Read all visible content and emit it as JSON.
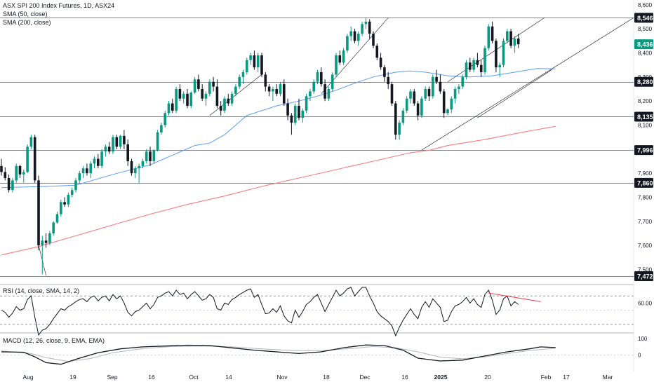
{
  "chart_data": {
    "type": "candlestick",
    "legend": {
      "title": "ASX SPI 200 Index Futures, 1D, ASX24",
      "sma50": "SMA (50, close)",
      "sma200": "SMA (200, close)"
    },
    "price_axis": {
      "ylim": [
        7440,
        8620
      ],
      "ticks": [
        7500,
        7600,
        7700,
        7800,
        7900,
        8000,
        8100,
        8200,
        8300,
        8400,
        8500,
        8600
      ],
      "tick_labels": [
        "7,500",
        "7,600",
        "7,700",
        "7,800",
        "7,900",
        "8,000",
        "8,100",
        "8,200",
        "8,300",
        "8,400",
        "8,500",
        "8,600"
      ]
    },
    "price_levels": [
      {
        "value": 8546,
        "label": "8,546",
        "style": "dark"
      },
      {
        "value": 8436,
        "label": "8,436",
        "style": "last"
      },
      {
        "value": 8280,
        "label": "8,280",
        "style": "dark"
      },
      {
        "value": 8135,
        "label": "8,135",
        "style": "dark"
      },
      {
        "value": 7996,
        "label": "7,996",
        "style": "dark"
      },
      {
        "value": 7860,
        "label": "7,860",
        "style": "dark"
      },
      {
        "value": 7472,
        "label": "7,472",
        "style": "dark"
      }
    ],
    "x_labels": [
      "Aug",
      "19",
      "Sep",
      "16",
      "Oct",
      "14",
      "Nov",
      "18",
      "Dec",
      "16",
      "2025",
      "20",
      "Feb",
      "17",
      "Mar"
    ],
    "candles": [
      [
        7930,
        7960,
        7890,
        7905
      ],
      [
        7905,
        7925,
        7870,
        7880
      ],
      [
        7880,
        7895,
        7820,
        7830
      ],
      [
        7830,
        7880,
        7820,
        7870
      ],
      [
        7870,
        7940,
        7860,
        7930
      ],
      [
        7930,
        7935,
        7880,
        7895
      ],
      [
        7895,
        7915,
        7860,
        7905
      ],
      [
        7905,
        8020,
        7900,
        8010
      ],
      [
        8010,
        8060,
        8000,
        8050
      ],
      [
        8050,
        8060,
        7860,
        7870
      ],
      [
        7870,
        7890,
        7580,
        7600
      ],
      [
        7600,
        7640,
        7480,
        7620
      ],
      [
        7620,
        7650,
        7590,
        7610
      ],
      [
        7610,
        7660,
        7600,
        7650
      ],
      [
        7650,
        7700,
        7640,
        7695
      ],
      [
        7695,
        7740,
        7690,
        7730
      ],
      [
        7730,
        7790,
        7720,
        7780
      ],
      [
        7780,
        7800,
        7760,
        7770
      ],
      [
        7770,
        7820,
        7760,
        7810
      ],
      [
        7810,
        7840,
        7800,
        7830
      ],
      [
        7830,
        7880,
        7820,
        7870
      ],
      [
        7870,
        7910,
        7860,
        7900
      ],
      [
        7900,
        7930,
        7880,
        7920
      ],
      [
        7920,
        7940,
        7890,
        7900
      ],
      [
        7900,
        7950,
        7880,
        7940
      ],
      [
        7940,
        7970,
        7920,
        7960
      ],
      [
        7960,
        7980,
        7920,
        7930
      ],
      [
        7930,
        8000,
        7920,
        7990
      ],
      [
        7990,
        8020,
        7970,
        8010
      ],
      [
        8010,
        8030,
        7980,
        7990
      ],
      [
        7990,
        8060,
        7980,
        8050
      ],
      [
        8050,
        8060,
        8000,
        8010
      ],
      [
        8010,
        8060,
        8000,
        8055
      ],
      [
        8055,
        8080,
        8000,
        8020
      ],
      [
        8020,
        8040,
        7930,
        7950
      ],
      [
        7950,
        7960,
        7890,
        7900
      ],
      [
        7900,
        7930,
        7880,
        7920
      ],
      [
        7920,
        7940,
        7860,
        7930
      ],
      [
        7930,
        7960,
        7920,
        7950
      ],
      [
        7950,
        8000,
        7940,
        7990
      ],
      [
        7990,
        8010,
        7930,
        7950
      ],
      [
        7950,
        8000,
        7940,
        7995
      ],
      [
        7995,
        8080,
        7990,
        8070
      ],
      [
        8070,
        8110,
        8060,
        8100
      ],
      [
        8100,
        8160,
        8090,
        8150
      ],
      [
        8150,
        8200,
        8140,
        8190
      ],
      [
        8190,
        8210,
        8150,
        8160
      ],
      [
        8160,
        8260,
        8150,
        8250
      ],
      [
        8250,
        8270,
        8200,
        8210
      ],
      [
        8210,
        8240,
        8190,
        8230
      ],
      [
        8230,
        8250,
        8170,
        8180
      ],
      [
        8180,
        8240,
        8170,
        8235
      ],
      [
        8235,
        8300,
        8230,
        8290
      ],
      [
        8290,
        8310,
        8240,
        8250
      ],
      [
        8250,
        8270,
        8200,
        8210
      ],
      [
        8210,
        8240,
        8180,
        8230
      ],
      [
        8230,
        8290,
        8220,
        8280
      ],
      [
        8280,
        8300,
        8240,
        8260
      ],
      [
        8260,
        8290,
        8170,
        8180
      ],
      [
        8180,
        8200,
        8140,
        8160
      ],
      [
        8160,
        8220,
        8150,
        8210
      ],
      [
        8210,
        8230,
        8180,
        8190
      ],
      [
        8190,
        8240,
        8180,
        8230
      ],
      [
        8230,
        8270,
        8220,
        8260
      ],
      [
        8260,
        8310,
        8250,
        8300
      ],
      [
        8300,
        8330,
        8270,
        8320
      ],
      [
        8320,
        8380,
        8310,
        8370
      ],
      [
        8370,
        8400,
        8350,
        8390
      ],
      [
        8390,
        8410,
        8330,
        8340
      ],
      [
        8340,
        8400,
        8320,
        8390
      ],
      [
        8390,
        8400,
        8300,
        8310
      ],
      [
        8310,
        8320,
        8240,
        8260
      ],
      [
        8260,
        8270,
        8220,
        8240
      ],
      [
        8240,
        8260,
        8200,
        8250
      ],
      [
        8250,
        8270,
        8220,
        8230
      ],
      [
        8230,
        8280,
        8220,
        8270
      ],
      [
        8270,
        8290,
        8180,
        8190
      ],
      [
        8190,
        8210,
        8120,
        8140
      ],
      [
        8140,
        8150,
        8060,
        8110
      ],
      [
        8110,
        8190,
        8100,
        8180
      ],
      [
        8180,
        8210,
        8120,
        8130
      ],
      [
        8130,
        8170,
        8110,
        8160
      ],
      [
        8160,
        8230,
        8150,
        8220
      ],
      [
        8220,
        8250,
        8200,
        8240
      ],
      [
        8240,
        8290,
        8230,
        8280
      ],
      [
        8280,
        8330,
        8270,
        8320
      ],
      [
        8320,
        8340,
        8260,
        8270
      ],
      [
        8270,
        8290,
        8200,
        8210
      ],
      [
        8210,
        8260,
        8200,
        8250
      ],
      [
        8250,
        8320,
        8240,
        8310
      ],
      [
        8310,
        8400,
        8300,
        8390
      ],
      [
        8390,
        8410,
        8350,
        8360
      ],
      [
        8360,
        8420,
        8350,
        8410
      ],
      [
        8410,
        8480,
        8400,
        8470
      ],
      [
        8470,
        8510,
        8450,
        8490
      ],
      [
        8490,
        8500,
        8440,
        8450
      ],
      [
        8450,
        8490,
        8430,
        8480
      ],
      [
        8480,
        8530,
        8470,
        8520
      ],
      [
        8520,
        8546,
        8500,
        8530
      ],
      [
        8530,
        8540,
        8460,
        8480
      ],
      [
        8480,
        8490,
        8420,
        8430
      ],
      [
        8430,
        8440,
        8370,
        8380
      ],
      [
        8380,
        8400,
        8330,
        8340
      ],
      [
        8340,
        8350,
        8280,
        8300
      ],
      [
        8300,
        8320,
        8250,
        8270
      ],
      [
        8270,
        8280,
        8180,
        8190
      ],
      [
        8190,
        8200,
        8040,
        8060
      ],
      [
        8060,
        8120,
        8040,
        8110
      ],
      [
        8110,
        8170,
        8100,
        8160
      ],
      [
        8160,
        8220,
        8150,
        8210
      ],
      [
        8210,
        8250,
        8190,
        8240
      ],
      [
        8240,
        8250,
        8180,
        8190
      ],
      [
        8190,
        8200,
        8120,
        8140
      ],
      [
        8140,
        8220,
        8130,
        8210
      ],
      [
        8210,
        8260,
        8200,
        8250
      ],
      [
        8250,
        8260,
        8200,
        8220
      ],
      [
        8220,
        8310,
        8210,
        8300
      ],
      [
        8300,
        8330,
        8270,
        8280
      ],
      [
        8280,
        8310,
        8230,
        8240
      ],
      [
        8240,
        8250,
        8130,
        8150
      ],
      [
        8150,
        8170,
        8140,
        8165
      ],
      [
        8165,
        8220,
        8150,
        8210
      ],
      [
        8210,
        8260,
        8190,
        8250
      ],
      [
        8250,
        8270,
        8230,
        8260
      ],
      [
        8260,
        8310,
        8250,
        8300
      ],
      [
        8300,
        8370,
        8290,
        8360
      ],
      [
        8360,
        8380,
        8320,
        8330
      ],
      [
        8330,
        8380,
        8320,
        8370
      ],
      [
        8370,
        8400,
        8340,
        8350
      ],
      [
        8350,
        8370,
        8300,
        8320
      ],
      [
        8320,
        8430,
        8310,
        8420
      ],
      [
        8420,
        8520,
        8410,
        8510
      ],
      [
        8510,
        8530,
        8440,
        8450
      ],
      [
        8450,
        8460,
        8320,
        8340
      ],
      [
        8340,
        8360,
        8300,
        8350
      ],
      [
        8350,
        8460,
        8340,
        8450
      ],
      [
        8450,
        8500,
        8440,
        8490
      ],
      [
        8490,
        8500,
        8420,
        8430
      ],
      [
        8430,
        8470,
        8400,
        8460
      ],
      [
        8460,
        8480,
        8420,
        8436
      ]
    ],
    "sma50": [
      [
        0,
        7840
      ],
      [
        12,
        7845
      ],
      [
        20,
        7850
      ],
      [
        30,
        7895
      ],
      [
        40,
        7935
      ],
      [
        46,
        7975
      ],
      [
        52,
        8015
      ],
      [
        56,
        8025
      ],
      [
        60,
        8060
      ],
      [
        66,
        8140
      ],
      [
        70,
        8160
      ],
      [
        74,
        8180
      ],
      [
        80,
        8200
      ],
      [
        86,
        8225
      ],
      [
        90,
        8245
      ],
      [
        96,
        8280
      ],
      [
        100,
        8300
      ],
      [
        106,
        8320
      ],
      [
        110,
        8325
      ],
      [
        114,
        8320
      ],
      [
        120,
        8305
      ],
      [
        126,
        8300
      ],
      [
        132,
        8305
      ],
      [
        138,
        8320
      ],
      [
        144,
        8335
      ],
      [
        149,
        8334
      ]
    ],
    "sma200": [
      [
        0,
        7560
      ],
      [
        10,
        7595
      ],
      [
        20,
        7640
      ],
      [
        30,
        7685
      ],
      [
        40,
        7730
      ],
      [
        50,
        7770
      ],
      [
        60,
        7805
      ],
      [
        70,
        7845
      ],
      [
        80,
        7880
      ],
      [
        90,
        7915
      ],
      [
        100,
        7950
      ],
      [
        110,
        7985
      ],
      [
        115,
        7995
      ],
      [
        120,
        8015
      ],
      [
        130,
        8040
      ],
      [
        140,
        8070
      ],
      [
        149,
        8095
      ]
    ],
    "trendlines": [
      {
        "x1": 10,
        "y1": 7600,
        "x2": 12,
        "y2": 7475,
        "color": "#131722"
      },
      {
        "x1": 56,
        "y1": 8140,
        "x2": 70,
        "y2": 8310,
        "color": "#131722"
      },
      {
        "x1": 86,
        "y1": 8230,
        "x2": 104,
        "y2": 8546,
        "color": "#131722"
      },
      {
        "x1": 113,
        "y1": 7996,
        "x2": 170,
        "y2": 8546,
        "color": "#131722"
      },
      {
        "x1": 120,
        "y1": 8280,
        "x2": 146,
        "y2": 8546,
        "color": "#131722"
      },
      {
        "x1": 128,
        "y1": 8130,
        "x2": 148,
        "y2": 8330,
        "color": "#131722"
      }
    ],
    "rsi": {
      "legend": "RSI (14, close, SMA, 14, 2)",
      "ylim": [
        20,
        85
      ],
      "tick_label": "60.00",
      "tick_value": 60,
      "bands": [
        70,
        30
      ],
      "values": [
        50,
        47,
        40,
        46,
        55,
        50,
        52,
        65,
        70,
        40,
        15,
        22,
        24,
        30,
        38,
        45,
        52,
        50,
        55,
        58,
        62,
        65,
        66,
        62,
        68,
        70,
        63,
        68,
        70,
        63,
        72,
        66,
        70,
        60,
        47,
        42,
        48,
        50,
        55,
        60,
        52,
        58,
        68,
        70,
        74,
        76,
        70,
        78,
        72,
        74,
        66,
        72,
        76,
        70,
        64,
        66,
        72,
        68,
        52,
        50,
        60,
        58,
        65,
        68,
        72,
        75,
        78,
        80,
        68,
        72,
        58,
        45,
        46,
        52,
        47,
        56,
        42,
        35,
        32,
        50,
        40,
        48,
        58,
        62,
        68,
        72,
        60,
        48,
        58,
        68,
        78,
        70,
        74,
        80,
        82,
        70,
        76,
        82,
        82,
        70,
        60,
        48,
        42,
        38,
        34,
        28,
        14,
        26,
        36,
        44,
        52,
        44,
        38,
        54,
        62,
        54,
        66,
        60,
        54,
        34,
        36,
        48,
        56,
        58,
        62,
        68,
        60,
        66,
        58,
        54,
        72,
        78,
        64,
        44,
        50,
        66,
        70,
        56,
        62,
        58
      ],
      "trendline": {
        "x1": 131,
        "y1": 74,
        "x2": 145,
        "y2": 62,
        "color": "#f23645"
      }
    },
    "macd": {
      "legend": "MACD (12, 26, close, 9, EMA, EMA)",
      "ylim": [
        -90,
        130
      ],
      "tick_labels": [
        "100",
        "0"
      ],
      "tick_values": [
        100,
        0
      ],
      "macd_line": [
        [
          0,
          20
        ],
        [
          6,
          18
        ],
        [
          9,
          -10
        ],
        [
          12,
          -45
        ],
        [
          16,
          -55
        ],
        [
          20,
          -25
        ],
        [
          26,
          15
        ],
        [
          32,
          38
        ],
        [
          38,
          50
        ],
        [
          44,
          55
        ],
        [
          50,
          60
        ],
        [
          56,
          58
        ],
        [
          62,
          44
        ],
        [
          68,
          30
        ],
        [
          74,
          20
        ],
        [
          80,
          10
        ],
        [
          86,
          20
        ],
        [
          92,
          45
        ],
        [
          98,
          62
        ],
        [
          103,
          58
        ],
        [
          108,
          30
        ],
        [
          112,
          -18
        ],
        [
          118,
          -35
        ],
        [
          124,
          -30
        ],
        [
          130,
          -5
        ],
        [
          136,
          20
        ],
        [
          142,
          38
        ],
        [
          145,
          50
        ],
        [
          149,
          46
        ]
      ],
      "signal_line": [
        [
          0,
          25
        ],
        [
          8,
          10
        ],
        [
          12,
          -15
        ],
        [
          18,
          -38
        ],
        [
          24,
          -20
        ],
        [
          30,
          15
        ],
        [
          38,
          40
        ],
        [
          46,
          52
        ],
        [
          54,
          55
        ],
        [
          62,
          50
        ],
        [
          70,
          38
        ],
        [
          78,
          28
        ],
        [
          86,
          28
        ],
        [
          94,
          40
        ],
        [
          100,
          52
        ],
        [
          106,
          45
        ],
        [
          112,
          20
        ],
        [
          118,
          -12
        ],
        [
          124,
          -22
        ],
        [
          130,
          -10
        ],
        [
          136,
          10
        ],
        [
          142,
          28
        ],
        [
          149,
          42
        ]
      ]
    },
    "colors": {
      "up": "#089981",
      "down": "#131722",
      "sma50": "#5b9cf6",
      "sma200": "#f77c80",
      "rsi": "#131722",
      "macd": "#131722",
      "signal": "#b2b5be",
      "level_label": "#131722",
      "last_label": "#089981",
      "grid": "#e0e3eb"
    }
  }
}
